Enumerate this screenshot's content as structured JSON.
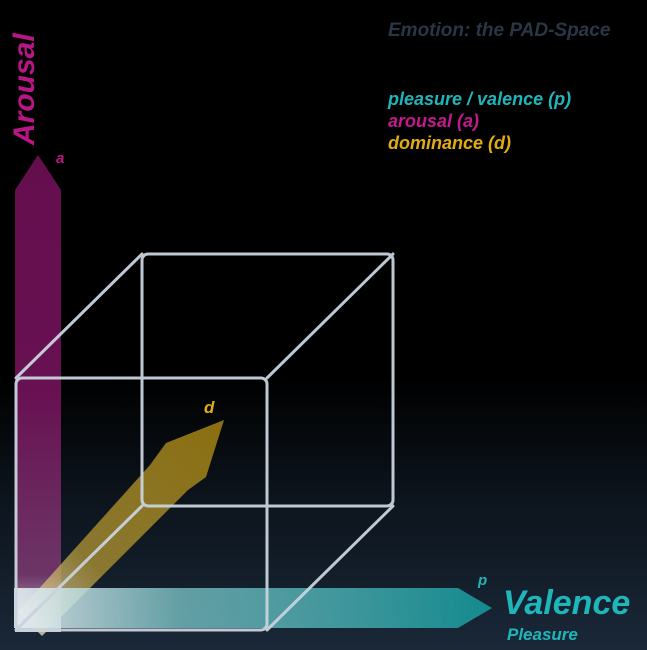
{
  "title": "Emotion: the PAD-Space",
  "legend": {
    "pleasure": "pleasure / valence (p)",
    "arousal": "arousal (a)",
    "dominance": "dominance (d)"
  },
  "axes": {
    "arousal": {
      "label": "Arousal",
      "short": "a",
      "color": "#b91585"
    },
    "valence": {
      "label": "Valence",
      "sublabel": "Pleasure",
      "short": "p",
      "color": "#1fb6ba"
    },
    "dominance": {
      "short": "d",
      "color": "#e3ac12"
    }
  },
  "colors": {
    "background": "#000000",
    "cube_edge": "#c9d3de",
    "title": "#2b3644"
  }
}
